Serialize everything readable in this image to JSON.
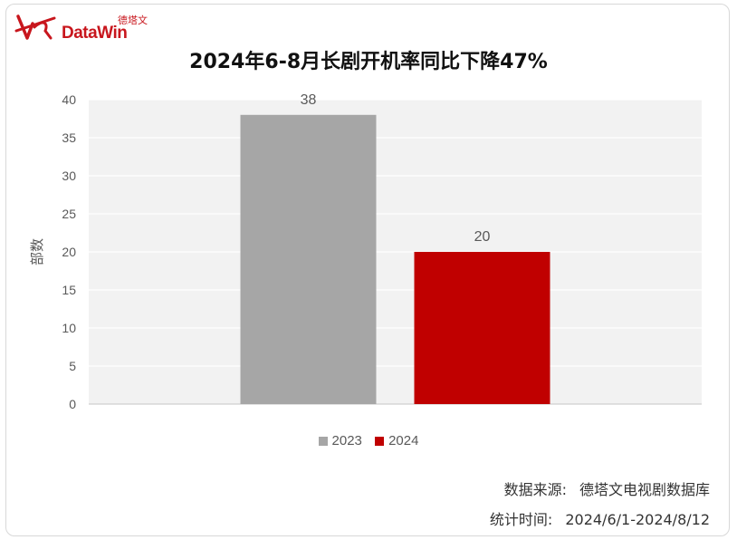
{
  "brand": {
    "name_cn": "德塔文",
    "name_en": "DataWin",
    "color": "#c8161d"
  },
  "chart_data": {
    "type": "bar",
    "title": "2024年6-8月长剧开机率同比下降47%",
    "xlabel": "",
    "ylabel": "部数",
    "ylim": [
      0,
      40
    ],
    "yticks": [
      0,
      5,
      10,
      15,
      20,
      25,
      30,
      35,
      40
    ],
    "grid": true,
    "legend_position": "bottom",
    "series": [
      {
        "name": "2023",
        "values": [
          38
        ],
        "color": "#a6a6a6"
      },
      {
        "name": "2024",
        "values": [
          20
        ],
        "color": "#c00000"
      }
    ],
    "data_labels": [
      "38",
      "20"
    ]
  },
  "footer": {
    "source_label": "数据来源:",
    "source_value": "德塔文电视剧数据库",
    "period_label": "统计时间:",
    "period_value": "2024/6/1-2024/8/12"
  }
}
